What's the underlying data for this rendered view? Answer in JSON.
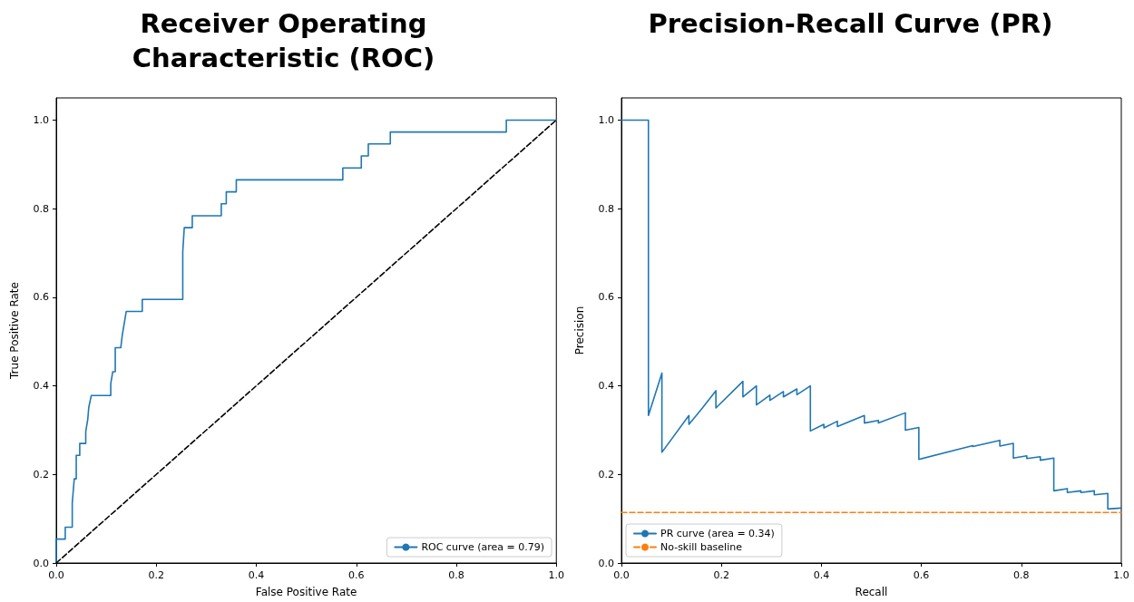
{
  "chart_data": [
    {
      "type": "line",
      "title": "Receiver Operating\nCharacteristic (ROC)",
      "xlabel": "False Positive Rate",
      "ylabel": "True Positive Rate",
      "xlim": [
        0,
        1
      ],
      "ylim": [
        0,
        1.05
      ],
      "xticks": [
        {
          "value": 0,
          "label": "0.0"
        },
        {
          "value": 0.2,
          "label": "0.2"
        },
        {
          "value": 0.4,
          "label": "0.4"
        },
        {
          "value": 0.6,
          "label": "0.6"
        },
        {
          "value": 0.8,
          "label": "0.8"
        },
        {
          "value": 1,
          "label": "1.0"
        }
      ],
      "yticks": [
        {
          "value": 0,
          "label": "0.0"
        },
        {
          "value": 0.2,
          "label": "0.2"
        },
        {
          "value": 0.4,
          "label": "0.4"
        },
        {
          "value": 0.6,
          "label": "0.6"
        },
        {
          "value": 0.8,
          "label": "0.8"
        },
        {
          "value": 1,
          "label": "1.0"
        }
      ],
      "grid": false,
      "legend": "bottom right",
      "marker": "none",
      "series": [
        {
          "name": "ROC curve (area = 0.79)",
          "color": "#1f77b4",
          "line_style": "solid",
          "x": [
            0,
            0,
            0.018,
            0.018,
            0.032,
            0.032,
            0.036,
            0.04,
            0.04,
            0.047,
            0.047,
            0.059,
            0.059,
            0.063,
            0.065,
            0.07,
            0.109,
            0.109,
            0.113,
            0.118,
            0.118,
            0.129,
            0.132,
            0.14,
            0.172,
            0.172,
            0.253,
            0.253,
            0.256,
            0.272,
            0.272,
            0.33,
            0.33,
            0.34,
            0.34,
            0.36,
            0.36,
            0.573,
            0.573,
            0.61,
            0.61,
            0.624,
            0.624,
            0.668,
            0.668,
            0.9,
            0.9,
            1
          ],
          "values": [
            0,
            0.054,
            0.054,
            0.081,
            0.081,
            0.135,
            0.19,
            0.19,
            0.243,
            0.243,
            0.27,
            0.27,
            0.297,
            0.324,
            0.351,
            0.378,
            0.378,
            0.405,
            0.432,
            0.432,
            0.486,
            0.486,
            0.514,
            0.568,
            0.568,
            0.595,
            0.595,
            0.703,
            0.757,
            0.757,
            0.784,
            0.784,
            0.811,
            0.811,
            0.838,
            0.838,
            0.865,
            0.865,
            0.892,
            0.892,
            0.919,
            0.919,
            0.946,
            0.946,
            0.973,
            0.973,
            1,
            1
          ]
        },
        {
          "color": "#000000",
          "line_style": "dashed",
          "x": [
            0,
            1
          ],
          "values": [
            0,
            1
          ]
        }
      ]
    },
    {
      "type": "line",
      "title": "Precision-Recall Curve (PR)",
      "xlabel": "Recall",
      "ylabel": "Precision",
      "xlim": [
        0,
        1
      ],
      "ylim": [
        0,
        1.05
      ],
      "xticks": [
        {
          "value": 0,
          "label": "0.0"
        },
        {
          "value": 0.2,
          "label": "0.2"
        },
        {
          "value": 0.4,
          "label": "0.4"
        },
        {
          "value": 0.6,
          "label": "0.6"
        },
        {
          "value": 0.8,
          "label": "0.8"
        },
        {
          "value": 1,
          "label": "1.0"
        }
      ],
      "yticks": [
        {
          "value": 0,
          "label": "0.0"
        },
        {
          "value": 0.2,
          "label": "0.2"
        },
        {
          "value": 0.4,
          "label": "0.4"
        },
        {
          "value": 0.6,
          "label": "0.6"
        },
        {
          "value": 0.8,
          "label": "0.8"
        },
        {
          "value": 1,
          "label": "1.0"
        }
      ],
      "grid": false,
      "legend": "bottom left",
      "marker": "none",
      "series": [
        {
          "name": "PR curve (area = 0.34)",
          "color": "#1f77b4",
          "line_style": "solid",
          "x": [
            0,
            0.054,
            0.054,
            0.081,
            0.081,
            0.135,
            0.135,
            0.162,
            0.189,
            0.189,
            0.243,
            0.243,
            0.27,
            0.27,
            0.297,
            0.297,
            0.324,
            0.324,
            0.351,
            0.351,
            0.378,
            0.378,
            0.405,
            0.405,
            0.432,
            0.432,
            0.486,
            0.486,
            0.514,
            0.514,
            0.568,
            0.568,
            0.595,
            0.595,
            0.703,
            0.703,
            0.757,
            0.757,
            0.784,
            0.784,
            0.811,
            0.811,
            0.838,
            0.838,
            0.865,
            0.865,
            0.892,
            0.892,
            0.919,
            0.919,
            0.946,
            0.946,
            0.973,
            0.973,
            1
          ],
          "values": [
            1,
            1,
            0.333,
            0.429,
            0.25,
            0.333,
            0.313,
            0.35,
            0.389,
            0.35,
            0.41,
            0.375,
            0.4,
            0.357,
            0.379,
            0.367,
            0.387,
            0.375,
            0.393,
            0.38,
            0.4,
            0.298,
            0.313,
            0.305,
            0.32,
            0.308,
            0.333,
            0.316,
            0.322,
            0.316,
            0.339,
            0.3,
            0.306,
            0.234,
            0.265,
            0.263,
            0.277,
            0.264,
            0.27,
            0.237,
            0.242,
            0.236,
            0.24,
            0.232,
            0.237,
            0.163,
            0.168,
            0.159,
            0.163,
            0.159,
            0.163,
            0.154,
            0.157,
            0.122,
            0.124
          ]
        },
        {
          "name": "No-skill baseline",
          "color": "#ff7f0e",
          "line_style": "dashed",
          "x": [
            0,
            1
          ],
          "values": [
            0.114,
            0.114
          ]
        }
      ]
    }
  ]
}
